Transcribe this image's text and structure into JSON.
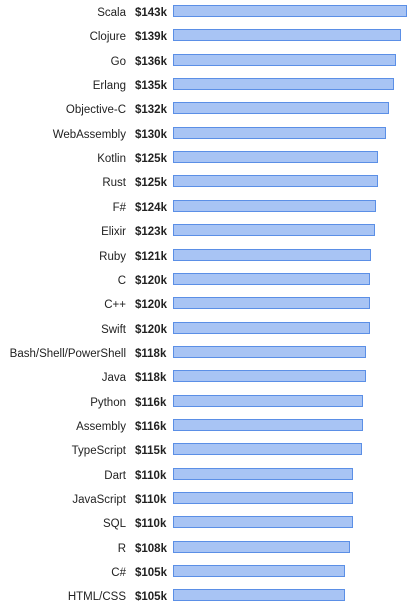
{
  "colors": {
    "bar_fill": "#a8c4f4",
    "bar_border": "#5b8fe6",
    "text": "#222222",
    "background": "#ffffff"
  },
  "chart_data": {
    "type": "bar",
    "orientation": "horizontal",
    "title": "",
    "xlabel": "",
    "ylabel": "",
    "xlim": [
      0,
      143
    ],
    "grid": false,
    "legend": "none",
    "categories": [
      "Scala",
      "Clojure",
      "Go",
      "Erlang",
      "Objective-C",
      "WebAssembly",
      "Kotlin",
      "Rust",
      "F#",
      "Elixir",
      "Ruby",
      "C",
      "C++",
      "Swift",
      "Bash/Shell/PowerShell",
      "Java",
      "Python",
      "Assembly",
      "TypeScript",
      "Dart",
      "JavaScript",
      "SQL",
      "R",
      "C#",
      "HTML/CSS"
    ],
    "values": [
      143,
      139,
      136,
      135,
      132,
      130,
      125,
      125,
      124,
      123,
      121,
      120,
      120,
      120,
      118,
      118,
      116,
      116,
      115,
      110,
      110,
      110,
      108,
      105,
      105
    ],
    "value_labels": [
      "$143k",
      "$139k",
      "$136k",
      "$135k",
      "$132k",
      "$130k",
      "$125k",
      "$125k",
      "$124k",
      "$123k",
      "$121k",
      "$120k",
      "$120k",
      "$120k",
      "$118k",
      "$118k",
      "$116k",
      "$116k",
      "$115k",
      "$110k",
      "$110k",
      "$110k",
      "$108k",
      "$105k",
      "$105k"
    ]
  }
}
